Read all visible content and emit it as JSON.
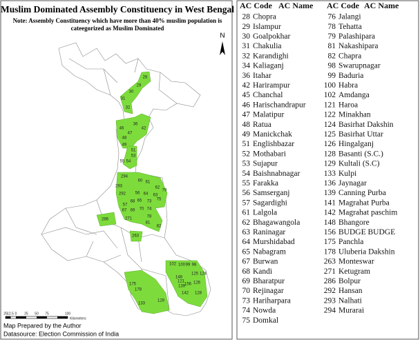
{
  "map": {
    "title": "Muslim Dominated Assembly Constituency in West Bengal",
    "note": [
      "Note: Assembly Constituency which have more than 40% muslim population is",
      "cateegorized as Muslim Dominated"
    ],
    "north": "N",
    "scale_bar": {
      "labels": [
        "25",
        "12.5",
        "0",
        "25",
        "50",
        "75",
        "100"
      ],
      "unit": "Kilometers"
    },
    "credits": [
      "Map Prepared by the Author",
      "Datasource: Election Commission of India"
    ],
    "labels": [
      "28",
      "29",
      "30",
      "31",
      "32",
      "36",
      "46",
      "42",
      "47",
      "48",
      "49",
      "51",
      "53",
      "54",
      "55",
      "294",
      "60",
      "61",
      "293",
      "292",
      "56",
      "62",
      "63",
      "79",
      "64",
      "65",
      "73",
      "75",
      "68",
      "57",
      "67",
      "69",
      "70",
      "74",
      "271",
      "78",
      "286",
      "81",
      "82",
      "263",
      "102",
      "100",
      "99",
      "98",
      "148",
      "125",
      "124",
      "121",
      "156",
      "139",
      "126",
      "142",
      "133",
      "129",
      "128",
      "175",
      "178"
    ]
  },
  "table": {
    "headers": [
      "AC Code",
      "AC Name",
      "AC Code",
      "AC Name"
    ],
    "left": [
      [
        28,
        "Chopra"
      ],
      [
        29,
        "Islampur"
      ],
      [
        30,
        "Goalpokhar"
      ],
      [
        31,
        "Chakulia"
      ],
      [
        32,
        "Karandighi"
      ],
      [
        34,
        "Kaliaganj"
      ],
      [
        36,
        "Itahar"
      ],
      [
        42,
        "Harirampur"
      ],
      [
        45,
        "Chanchal"
      ],
      [
        46,
        "Harischandrapur"
      ],
      [
        47,
        "Malatipur"
      ],
      [
        48,
        "Ratua"
      ],
      [
        49,
        "Manickchak"
      ],
      [
        51,
        "Englishbazar"
      ],
      [
        52,
        "Mothabari"
      ],
      [
        53,
        "Sujapur"
      ],
      [
        54,
        "Baishnabnagar"
      ],
      [
        55,
        "Farakka"
      ],
      [
        56,
        "Samserganj"
      ],
      [
        57,
        "Sagardighi"
      ],
      [
        61,
        "Lalgola"
      ],
      [
        62,
        "Bhagawangola"
      ],
      [
        63,
        "Raninagar"
      ],
      [
        64,
        "Murshidabad"
      ],
      [
        65,
        "Nabagram"
      ],
      [
        67,
        "Burwan"
      ],
      [
        68,
        "Kandi"
      ],
      [
        69,
        "Bharatpur"
      ],
      [
        70,
        "Rejinagar"
      ],
      [
        73,
        "Hariharpara"
      ],
      [
        74,
        "Nowda"
      ],
      [
        75,
        "Domkal"
      ]
    ],
    "right": [
      [
        76,
        "Jalangi"
      ],
      [
        78,
        "Tehatta"
      ],
      [
        79,
        "Palashipara"
      ],
      [
        81,
        "Nakashipara"
      ],
      [
        82,
        "Chapra"
      ],
      [
        98,
        "Swarupnagar"
      ],
      [
        99,
        "Baduria"
      ],
      [
        100,
        "Habra"
      ],
      [
        102,
        "Amdanga"
      ],
      [
        121,
        "Haroa"
      ],
      [
        122,
        "Minakhan"
      ],
      [
        124,
        "Basirhat Dakshin"
      ],
      [
        125,
        "Basirhat Uttar"
      ],
      [
        126,
        "Hingalganj"
      ],
      [
        128,
        "Basanti (S.C.)"
      ],
      [
        129,
        "Kultali (S.C)"
      ],
      [
        133,
        "Kulpi"
      ],
      [
        136,
        "Jaynagar"
      ],
      [
        139,
        "Canning Purba"
      ],
      [
        141,
        "Magrahat Purba"
      ],
      [
        142,
        "Magrahat paschim"
      ],
      [
        148,
        "Bhangore"
      ],
      [
        156,
        "BUDGE BUDGE"
      ],
      [
        175,
        "Panchla"
      ],
      [
        178,
        "Uluberia Dakshin"
      ],
      [
        263,
        "Monteswar"
      ],
      [
        271,
        "Ketugram"
      ],
      [
        286,
        "Bolpur"
      ],
      [
        292,
        "Hansan"
      ],
      [
        293,
        "Nalhati"
      ],
      [
        294,
        "Murarai"
      ]
    ]
  }
}
